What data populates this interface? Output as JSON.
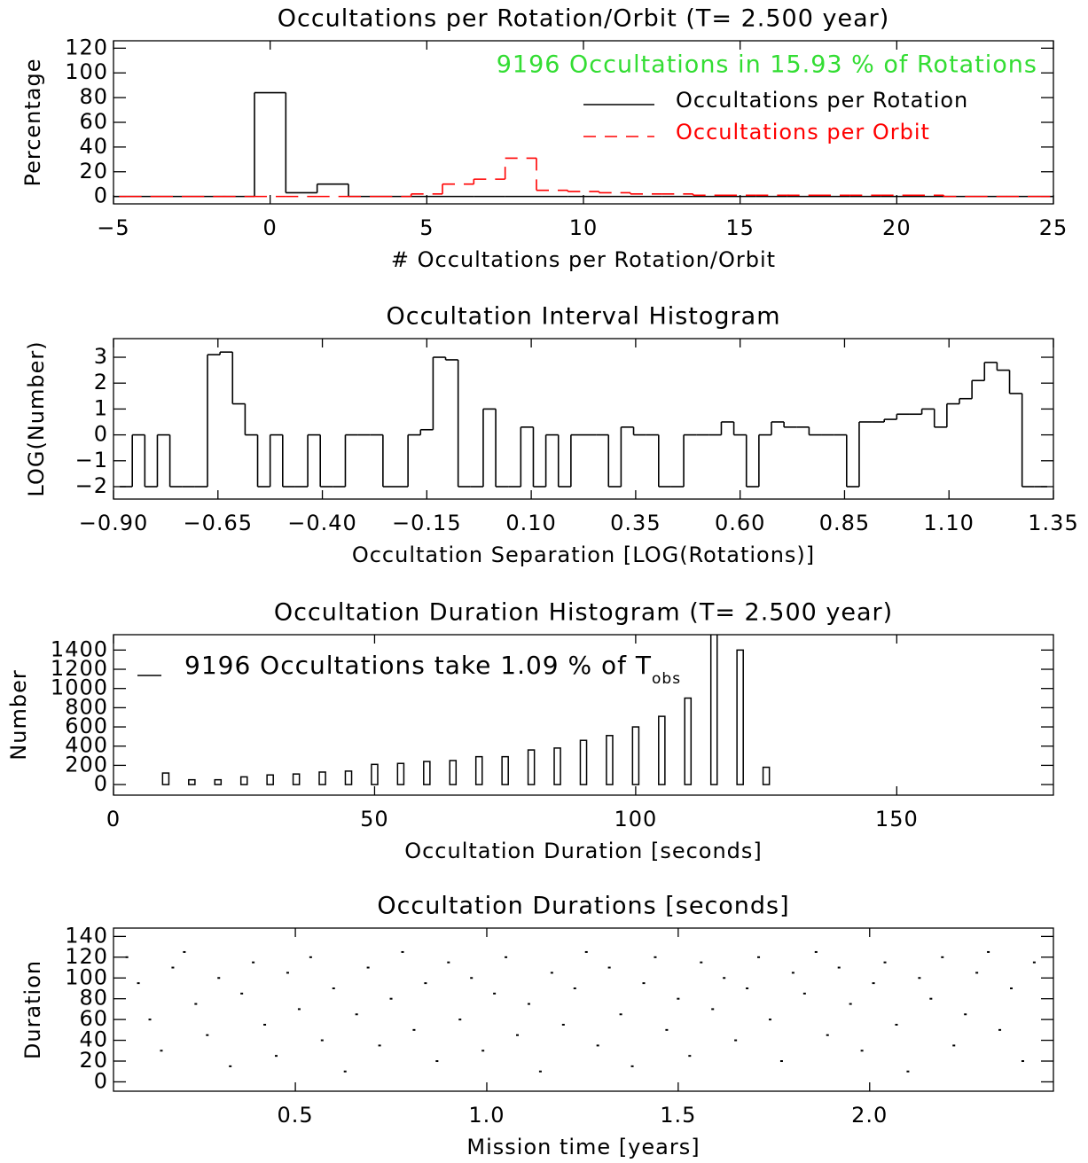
{
  "chart_data": [
    {
      "type": "step",
      "title": "Occultations per Rotation/Orbit  (T= 2.500 year)",
      "x_label": "# Occultations per Rotation/Orbit",
      "y_label": "Percentage",
      "annotation": "9196 Occultations in 15.93 % of Rotations",
      "annotation_color": "#33dd33",
      "x": [
        -5,
        -4,
        -3,
        -2,
        -1,
        0,
        1,
        2,
        3,
        4,
        5,
        6,
        7,
        8,
        9,
        10,
        11,
        12,
        13,
        14,
        15,
        16,
        17,
        18,
        19,
        20,
        21,
        22,
        23,
        24,
        25
      ],
      "series": [
        {
          "name": "Occultations per Rotation",
          "color": "#000000",
          "line_style": "solid",
          "values": [
            0,
            0,
            0,
            0,
            0,
            84,
            3,
            10,
            0,
            0,
            0,
            0,
            0,
            0,
            0,
            0,
            0,
            0,
            0,
            0,
            0,
            0,
            0,
            0,
            0,
            0,
            0,
            0,
            0,
            0,
            0
          ]
        },
        {
          "name": "Occultations per Orbit",
          "color": "#ff0000",
          "line_style": "dashed",
          "values": [
            0,
            0,
            0,
            0,
            0,
            0,
            0,
            0,
            0,
            0,
            2,
            10,
            14,
            31,
            5,
            4,
            3,
            2,
            2,
            1,
            1,
            1,
            1,
            1,
            1,
            1,
            1,
            0,
            0,
            0,
            0
          ]
        }
      ],
      "xlim": [
        -5,
        25
      ],
      "xticks": [
        {
          "value": -5,
          "label": "−5"
        },
        0,
        5,
        10,
        15,
        20,
        25
      ],
      "ylim": [
        -6,
        126
      ],
      "yticks": [
        0,
        20,
        40,
        60,
        80,
        100,
        120
      ]
    },
    {
      "type": "step",
      "title": "Occultation Interval Histogram",
      "x_label": "Occultation Separation [LOG(Rotations)]",
      "y_label": "LOG(Number)",
      "color": "#000000",
      "x": [
        -0.87,
        -0.84,
        -0.81,
        -0.78,
        -0.75,
        -0.72,
        -0.69,
        -0.66,
        -0.63,
        -0.6,
        -0.57,
        -0.54,
        -0.51,
        -0.48,
        -0.45,
        -0.42,
        -0.39,
        -0.36,
        -0.33,
        -0.3,
        -0.27,
        -0.24,
        -0.21,
        -0.18,
        -0.15,
        -0.12,
        -0.09,
        -0.06,
        -0.03,
        0,
        0.03,
        0.06,
        0.09,
        0.12,
        0.15,
        0.18,
        0.21,
        0.24,
        0.27,
        0.3,
        0.33,
        0.36,
        0.39,
        0.42,
        0.45,
        0.48,
        0.51,
        0.54,
        0.57,
        0.6,
        0.63,
        0.66,
        0.69,
        0.72,
        0.75,
        0.78,
        0.81,
        0.84,
        0.87,
        0.9,
        0.93,
        0.96,
        0.99,
        1.02,
        1.05,
        1.08,
        1.11,
        1.14,
        1.17,
        1.2,
        1.23,
        1.26,
        1.29,
        1.32
      ],
      "values": [
        -2,
        0,
        -2,
        0,
        -2,
        -2,
        -2,
        3.1,
        3.2,
        1.2,
        0,
        -2,
        0,
        -2,
        -2,
        0,
        -2,
        -2,
        0,
        0,
        0,
        -2,
        -2,
        0,
        0.2,
        3,
        2.9,
        -2,
        -2,
        1,
        -2,
        -2,
        0.3,
        -2,
        0,
        -2,
        0,
        0,
        0,
        -2,
        0.3,
        0,
        0,
        -2,
        -2,
        0,
        0,
        0,
        0.5,
        0,
        -2,
        0,
        0.5,
        0.3,
        0.3,
        0,
        0,
        0,
        -2,
        0.5,
        0.5,
        0.6,
        0.8,
        0.8,
        1,
        0.3,
        1.2,
        1.4,
        2.1,
        2.8,
        2.5,
        1.6,
        -2,
        -2
      ],
      "xlim": [
        -0.9,
        1.35
      ],
      "xticks": [
        {
          "value": -0.9,
          "label": "−0.90"
        },
        {
          "value": -0.65,
          "label": "−0.65"
        },
        {
          "value": -0.4,
          "label": "−0.40"
        },
        {
          "value": -0.15,
          "label": "−0.15"
        },
        {
          "value": 0.1,
          "label": "0.10"
        },
        0.35,
        {
          "value": 0.6,
          "label": "0.60"
        },
        0.85,
        {
          "value": 1.1,
          "label": "1.10"
        },
        1.35
      ],
      "ylim": [
        -2.48,
        3.72
      ],
      "yticks": [
        {
          "value": -2,
          "label": "−2"
        },
        {
          "value": -1,
          "label": "−1"
        },
        0,
        1,
        2,
        3
      ]
    },
    {
      "type": "bar",
      "title": "Occultation Duration Histogram  (T= 2.500 year)",
      "x_label": "Occultation Duration [seconds]",
      "y_label": "Number",
      "color": "#000000",
      "annotation": "9196 Occultations take  1.09 % of T",
      "annotation_subscript": "obs",
      "x": [
        10,
        15,
        20,
        25,
        30,
        35,
        40,
        45,
        50,
        55,
        60,
        65,
        70,
        75,
        80,
        85,
        90,
        95,
        100,
        105,
        110,
        115,
        120,
        125
      ],
      "values": [
        120,
        50,
        50,
        80,
        100,
        110,
        130,
        140,
        210,
        220,
        240,
        250,
        290,
        290,
        360,
        380,
        460,
        510,
        600,
        710,
        900,
        1600,
        1400,
        180
      ],
      "xlim": [
        0,
        180
      ],
      "xticks": [
        0,
        50,
        100,
        150
      ],
      "ylim": [
        -110,
        1560
      ],
      "yticks": [
        0,
        200,
        400,
        600,
        800,
        1000,
        1200,
        1400
      ]
    },
    {
      "type": "scatter",
      "title": "Occultation Durations [seconds]",
      "x_label": "Mission time [years]",
      "y_label": "Duration",
      "color": "#000000",
      "x": [
        0.06,
        0.09,
        0.12,
        0.15,
        0.18,
        0.21,
        0.24,
        0.27,
        0.3,
        0.33,
        0.36,
        0.39,
        0.42,
        0.45,
        0.48,
        0.51,
        0.54,
        0.57,
        0.6,
        0.63,
        0.66,
        0.69,
        0.72,
        0.75,
        0.78,
        0.81,
        0.84,
        0.87,
        0.9,
        0.93,
        0.96,
        0.99,
        1.02,
        1.05,
        1.08,
        1.11,
        1.14,
        1.17,
        1.2,
        1.23,
        1.26,
        1.29,
        1.32,
        1.35,
        1.38,
        1.41,
        1.44,
        1.47,
        1.5,
        1.53,
        1.56,
        1.59,
        1.62,
        1.65,
        1.68,
        1.71,
        1.74,
        1.77,
        1.8,
        1.83,
        1.86,
        1.89,
        1.92,
        1.95,
        1.98,
        2.01,
        2.04,
        2.07,
        2.1,
        2.13,
        2.16,
        2.19,
        2.22,
        2.25,
        2.28,
        2.31,
        2.34,
        2.37,
        2.4,
        2.43
      ],
      "values": [
        120,
        95,
        60,
        30,
        110,
        125,
        75,
        45,
        100,
        15,
        85,
        115,
        55,
        25,
        105,
        70,
        120,
        40,
        90,
        10,
        65,
        110,
        35,
        80,
        125,
        50,
        95,
        20,
        115,
        60,
        100,
        30,
        85,
        120,
        45,
        75,
        10,
        105,
        55,
        90,
        125,
        35,
        110,
        65,
        15,
        95,
        120,
        50,
        80,
        25,
        115,
        70,
        100,
        40,
        90,
        120,
        60,
        20,
        105,
        85,
        125,
        45,
        110,
        75,
        30,
        95,
        115,
        55,
        10,
        100,
        80,
        120,
        35,
        65,
        105,
        125,
        50,
        90,
        20,
        115
      ],
      "xlim": [
        0.025,
        2.48
      ],
      "xticks": [
        0.5,
        {
          "value": 1,
          "label": "1.0"
        },
        1.5,
        {
          "value": 2,
          "label": "2.0"
        }
      ],
      "ylim": [
        -9,
        148
      ],
      "yticks": [
        0,
        20,
        40,
        60,
        80,
        100,
        120,
        140
      ]
    }
  ]
}
